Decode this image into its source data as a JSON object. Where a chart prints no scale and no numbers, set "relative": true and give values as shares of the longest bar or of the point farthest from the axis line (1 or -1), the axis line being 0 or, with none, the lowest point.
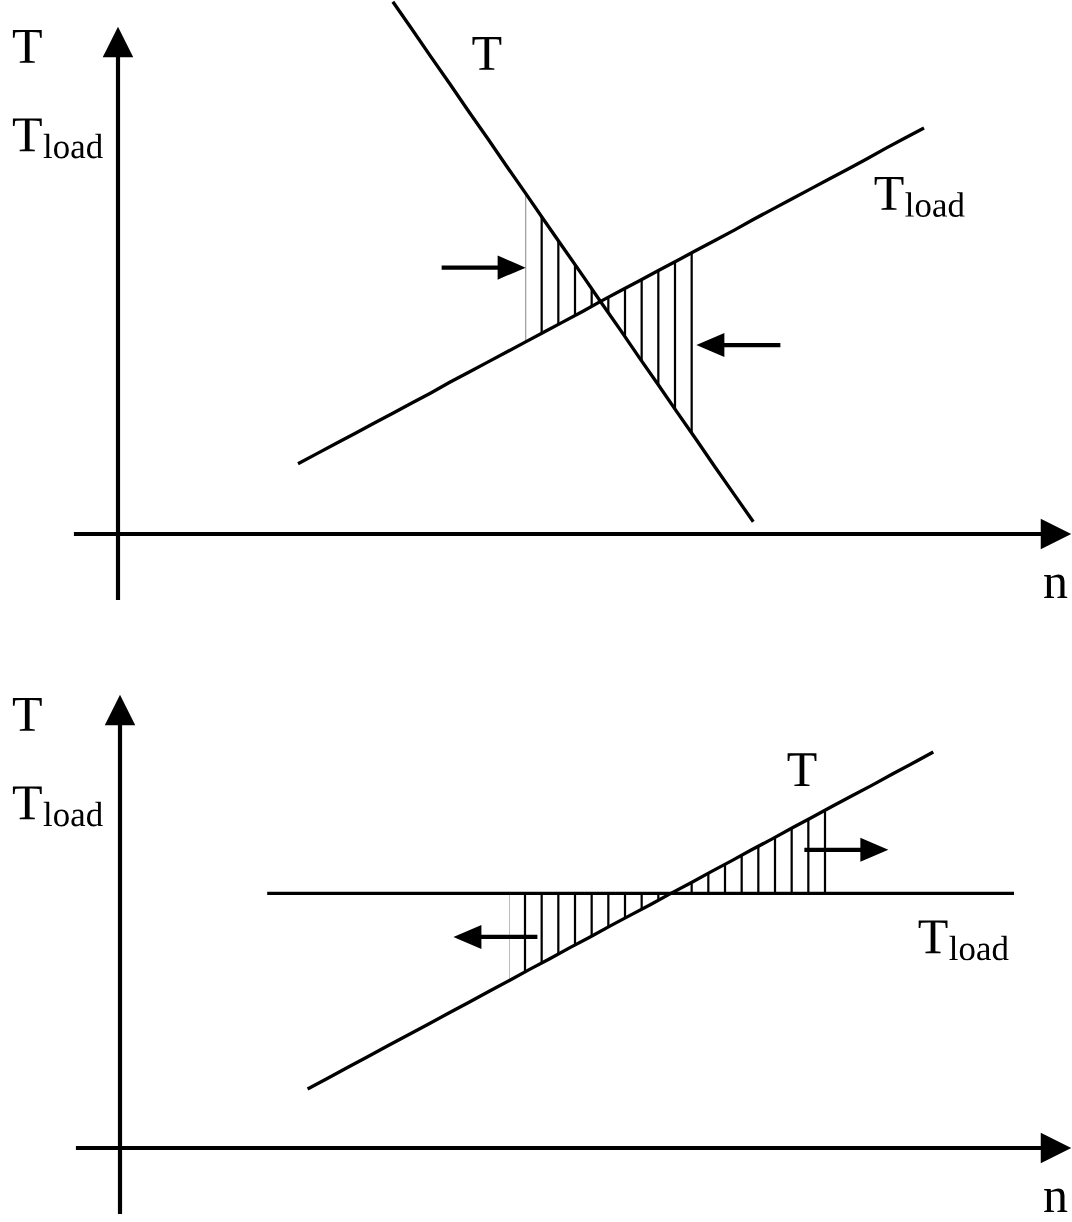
{
  "chart_data": [
    {
      "type": "line",
      "relative": true,
      "tick_labels": false,
      "xlabel": "n",
      "ylabel": "T\nT$_{load}$",
      "categories": [
        null,
        null,
        null,
        null,
        null,
        null,
        null,
        null,
        null,
        null,
        null,
        null,
        null,
        null,
        null,
        null,
        null,
        null,
        null,
        null,
        null,
        null,
        null,
        null,
        null,
        null,
        null,
        null,
        null,
        null,
        null,
        null,
        null,
        null
      ],
      "series": [
        {
          "name": "T",
          "color": "#000000",
          "values": [
            null,
            null,
            null,
            null,
            null,
            1.0,
            0.949,
            0.897,
            0.846,
            0.794,
            0.743,
            0.691,
            0.64,
            0.588,
            0.537,
            0.486,
            0.434,
            0.383,
            0.331,
            0.28,
            0.228,
            0.177,
            0.125,
            0.074,
            0.023,
            null,
            null,
            null,
            null,
            null,
            null,
            null,
            null,
            null
          ],
          "lower": [
            null,
            null,
            null,
            null,
            null,
            null,
            null,
            null,
            null,
            null,
            null,
            null,
            0.361,
            0.38,
            0.399,
            0.418,
            0.434,
            0.383,
            0.331,
            0.28,
            0.228,
            0.177,
            null,
            null,
            null,
            null,
            null,
            null,
            null,
            null,
            null,
            null,
            null,
            null
          ],
          "upper": [
            null,
            null,
            null,
            null,
            null,
            null,
            null,
            null,
            null,
            null,
            null,
            null,
            0.64,
            0.588,
            0.537,
            0.486,
            0.438,
            0.457,
            0.476,
            0.495,
            0.514,
            0.533,
            null,
            null,
            null,
            null,
            null,
            null,
            null,
            null,
            null,
            null,
            null,
            null
          ]
        },
        {
          "name": "T$_{load}$",
          "color": "#000000",
          "values": [
            0.132,
            0.151,
            0.17,
            0.189,
            0.208,
            0.227,
            0.246,
            0.265,
            0.285,
            0.304,
            0.323,
            0.342,
            0.361,
            0.38,
            0.399,
            0.418,
            0.438,
            0.457,
            0.476,
            0.495,
            0.514,
            0.533,
            0.552,
            0.571,
            0.591,
            0.61,
            0.629,
            0.648,
            0.667,
            0.686,
            0.705,
            0.725,
            0.744,
            0.763
          ]
        }
      ]
    },
    {
      "type": "line",
      "relative": true,
      "tick_labels": false,
      "xlabel": "n",
      "ylabel": "T\nT$_{load}$",
      "categories": [
        null,
        null,
        null,
        null,
        null,
        null,
        null,
        null,
        null,
        null,
        null,
        null,
        null,
        null,
        null,
        null,
        null,
        null,
        null,
        null,
        null,
        null,
        null,
        null,
        null,
        null,
        null,
        null,
        null,
        null,
        null,
        null,
        null,
        null,
        null,
        null,
        null,
        null
      ],
      "series": [
        {
          "name": "T",
          "color": "#000000",
          "values": [
            null,
            null,
            0.149,
            0.176,
            0.204,
            0.231,
            0.259,
            0.286,
            0.313,
            0.341,
            0.368,
            0.396,
            0.423,
            0.451,
            0.478,
            0.506,
            0.533,
            0.561,
            0.588,
            0.615,
            0.643,
            0.67,
            0.698,
            0.725,
            0.753,
            0.78,
            0.808,
            0.835,
            0.863,
            0.89,
            0.917,
            0.945,
            0.972,
            1.0,
            null,
            null,
            null,
            null
          ],
          "lower": [
            null,
            null,
            null,
            null,
            null,
            null,
            null,
            null,
            null,
            null,
            null,
            null,
            0.423,
            0.451,
            0.478,
            0.506,
            0.533,
            0.561,
            0.588,
            0.615,
            0.643,
            0.643,
            0.643,
            0.643,
            0.643,
            0.643,
            0.643,
            0.643,
            0.643,
            null,
            null,
            null,
            null,
            null,
            null,
            null,
            null,
            null
          ],
          "upper": [
            null,
            null,
            null,
            null,
            null,
            null,
            null,
            null,
            null,
            null,
            null,
            null,
            0.643,
            0.643,
            0.643,
            0.643,
            0.643,
            0.643,
            0.643,
            0.643,
            0.643,
            0.67,
            0.698,
            0.725,
            0.753,
            0.78,
            0.808,
            0.835,
            0.863,
            null,
            null,
            null,
            null,
            null,
            null,
            null,
            null,
            null
          ]
        },
        {
          "name": "T$_{load}$",
          "color": "#000000",
          "values": [
            0.643,
            0.643,
            0.643,
            0.643,
            0.643,
            0.643,
            0.643,
            0.643,
            0.643,
            0.643,
            0.643,
            0.643,
            0.643,
            0.643,
            0.643,
            0.643,
            0.643,
            0.643,
            0.643,
            0.643,
            0.643,
            0.643,
            0.643,
            0.643,
            0.643,
            0.643,
            0.643,
            0.643,
            0.643,
            0.643,
            0.643,
            0.643,
            0.643,
            0.643,
            0.643,
            0.643,
            0.643,
            0.643
          ]
        }
      ]
    }
  ]
}
